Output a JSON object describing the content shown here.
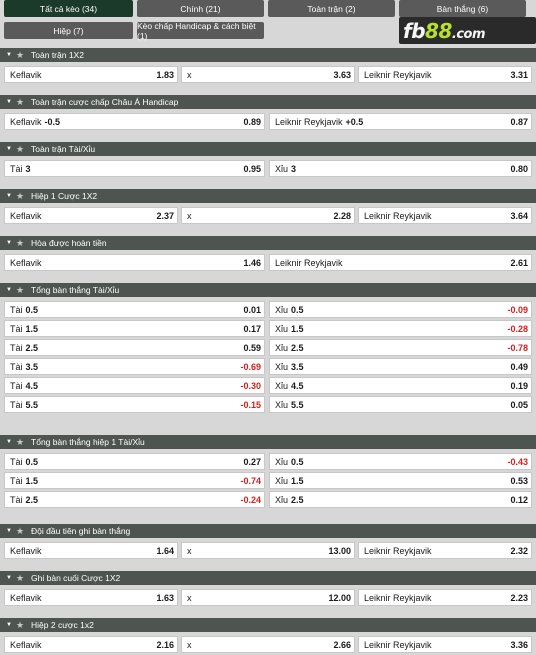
{
  "tabs": [
    {
      "label": "Tất cả kèo (34)",
      "active": true
    },
    {
      "label": "Chính (21)",
      "active": false
    },
    {
      "label": "Toàn trận (2)",
      "active": false
    },
    {
      "label": "Bàn thắng (6)",
      "active": false
    },
    {
      "label": "Hiệp (7)",
      "active": false
    },
    {
      "label": "Kèo chấp Handicap & cách biệt (1)",
      "active": false
    }
  ],
  "logo": {
    "brand": "fb",
    "number": "88",
    "suffix": ".com"
  },
  "sections": [
    {
      "title": "Toàn trận 1X2",
      "rows": [
        [
          {
            "label": "Keflavik",
            "handicap": "",
            "odds": "1.83"
          },
          {
            "label": "x",
            "handicap": "",
            "odds": "3.63"
          },
          {
            "label": "Leiknir Reykjavik",
            "handicap": "",
            "odds": "3.31"
          }
        ]
      ]
    },
    {
      "title": "Toàn trận cược chấp Châu Á Handicap",
      "rows": [
        [
          {
            "label": "Keflavik",
            "handicap": "-0.5",
            "odds": "0.89"
          },
          {
            "label": "Leiknir Reykjavik",
            "handicap": "+0.5",
            "odds": "0.87"
          }
        ]
      ]
    },
    {
      "title": "Toàn trận Tài/Xỉu",
      "rows": [
        [
          {
            "label": "Tài",
            "handicap": "3",
            "odds": "0.95"
          },
          {
            "label": "Xỉu",
            "handicap": "3",
            "odds": "0.80"
          }
        ]
      ]
    },
    {
      "title": "Hiệp 1 Cược 1X2",
      "rows": [
        [
          {
            "label": "Keflavik",
            "handicap": "",
            "odds": "2.37"
          },
          {
            "label": "x",
            "handicap": "",
            "odds": "2.28"
          },
          {
            "label": "Leiknir Reykjavik",
            "handicap": "",
            "odds": "3.64"
          }
        ]
      ]
    },
    {
      "title": "Hòa được hoàn tiền",
      "rows": [
        [
          {
            "label": "Keflavik",
            "handicap": "",
            "odds": "1.46"
          },
          {
            "label": "Leiknir Reykjavik",
            "handicap": "",
            "odds": "2.61"
          }
        ]
      ]
    },
    {
      "title": "Tổng bàn thắng Tài/Xỉu",
      "rows": [
        [
          {
            "label": "Tài",
            "handicap": "0.5",
            "odds": "0.01"
          },
          {
            "label": "Xỉu",
            "handicap": "0.5",
            "odds": "-0.09"
          }
        ],
        [
          {
            "label": "Tài",
            "handicap": "1.5",
            "odds": "0.17"
          },
          {
            "label": "Xỉu",
            "handicap": "1.5",
            "odds": "-0.28"
          }
        ],
        [
          {
            "label": "Tài",
            "handicap": "2.5",
            "odds": "0.59"
          },
          {
            "label": "Xỉu",
            "handicap": "2.5",
            "odds": "-0.78"
          }
        ],
        [
          {
            "label": "Tài",
            "handicap": "3.5",
            "odds": "-0.69"
          },
          {
            "label": "Xỉu",
            "handicap": "3.5",
            "odds": "0.49"
          }
        ],
        [
          {
            "label": "Tài",
            "handicap": "4.5",
            "odds": "-0.30"
          },
          {
            "label": "Xỉu",
            "handicap": "4.5",
            "odds": "0.19"
          }
        ],
        [
          {
            "label": "Tài",
            "handicap": "5.5",
            "odds": "-0.15"
          },
          {
            "label": "Xỉu",
            "handicap": "5.5",
            "odds": "0.05"
          }
        ]
      ]
    },
    {
      "title": "Tổng bàn thắng hiệp 1 Tài/Xỉu",
      "rows": [
        [
          {
            "label": "Tài",
            "handicap": "0.5",
            "odds": "0.27"
          },
          {
            "label": "Xỉu",
            "handicap": "0.5",
            "odds": "-0.43"
          }
        ],
        [
          {
            "label": "Tài",
            "handicap": "1.5",
            "odds": "-0.74"
          },
          {
            "label": "Xỉu",
            "handicap": "1.5",
            "odds": "0.53"
          }
        ],
        [
          {
            "label": "Tài",
            "handicap": "2.5",
            "odds": "-0.24"
          },
          {
            "label": "Xỉu",
            "handicap": "2.5",
            "odds": "0.12"
          }
        ]
      ]
    },
    {
      "title": "Đội đầu tiên ghi bàn thắng",
      "rows": [
        [
          {
            "label": "Keflavik",
            "handicap": "",
            "odds": "1.64"
          },
          {
            "label": "x",
            "handicap": "",
            "odds": "13.00"
          },
          {
            "label": "Leiknir Reykjavik",
            "handicap": "",
            "odds": "2.32"
          }
        ]
      ]
    },
    {
      "title": "Ghi bàn cuối Cược 1X2",
      "rows": [
        [
          {
            "label": "Keflavik",
            "handicap": "",
            "odds": "1.63"
          },
          {
            "label": "x",
            "handicap": "",
            "odds": "12.00"
          },
          {
            "label": "Leiknir Reykjavik",
            "handicap": "",
            "odds": "2.23"
          }
        ]
      ]
    },
    {
      "title": "Hiệp 2 cược 1x2",
      "rows": [
        [
          {
            "label": "Keflavik",
            "handicap": "",
            "odds": "2.16"
          },
          {
            "label": "x",
            "handicap": "",
            "odds": "2.66"
          },
          {
            "label": "Leiknir Reykjavik",
            "handicap": "",
            "odds": "3.36"
          }
        ]
      ]
    }
  ],
  "colors": {
    "negative_odds": "#d21f1f",
    "section_header": "#4e5550",
    "active_tab": "#1c3a29",
    "logo_accent": "#b8e02a"
  }
}
